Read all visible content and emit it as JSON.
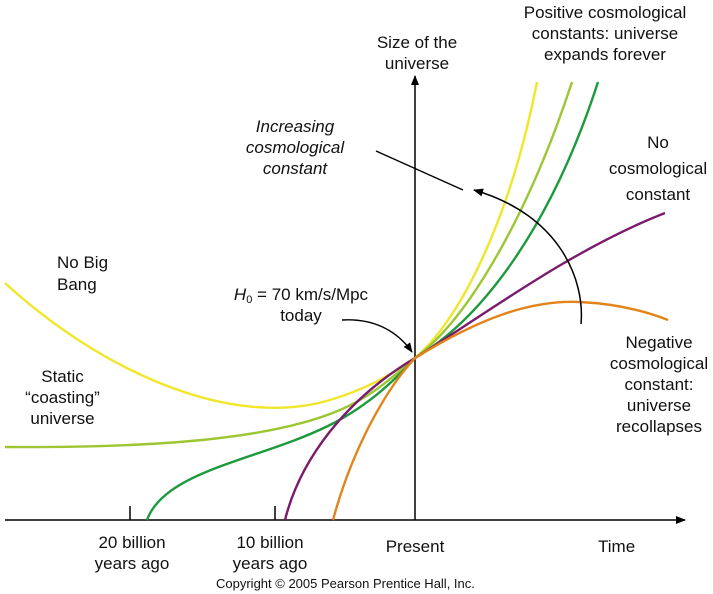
{
  "axes": {
    "y_label": [
      "Size of the",
      "universe"
    ],
    "x_label": "Time",
    "ticks": [
      {
        "lines": [
          "20 billion",
          "years ago"
        ]
      },
      {
        "lines": [
          "10 billion",
          "years ago"
        ]
      },
      {
        "lines": [
          "Present"
        ]
      }
    ]
  },
  "labels": {
    "positive": [
      "Positive cosmological",
      "constants: universe",
      "expands forever"
    ],
    "none": [
      "No",
      "cosmological",
      "constant"
    ],
    "negative": [
      "Negative",
      "cosmological",
      "constant:",
      "universe",
      "recollapses"
    ],
    "increasing": [
      "Increasing",
      "cosmological",
      "constant"
    ],
    "no_big_bang": [
      "No Big",
      "Bang"
    ],
    "static": [
      "Static",
      "“coasting”",
      "universe"
    ],
    "hubble_symbol": "H",
    "hubble_sub": "0",
    "hubble_value": " = 70 km/s/Mpc",
    "hubble_today": "today"
  },
  "copyright": "Copyright © 2005 Pearson Prentice Hall, Inc.",
  "colors": {
    "yellow": "#f0e62a",
    "light_green": "#9cc733",
    "dark_green": "#1d9a3c",
    "purple": "#7b1b6e",
    "orange": "#e3841a",
    "axis": "#000000"
  },
  "curves": [
    {
      "id": "no-big-bang",
      "color_key": "yellow"
    },
    {
      "id": "static-coasting",
      "color_key": "light_green"
    },
    {
      "id": "no-lambda",
      "color_key": "dark_green"
    },
    {
      "id": "negative-lambda",
      "color_key": "purple"
    },
    {
      "id": "recollapse",
      "color_key": "orange"
    }
  ]
}
